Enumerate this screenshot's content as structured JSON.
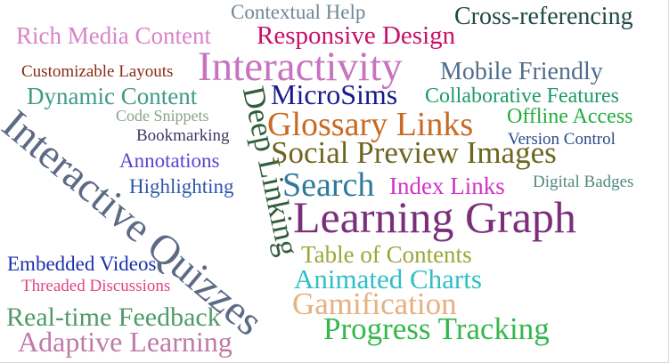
{
  "words": [
    {
      "id": "contextual-help",
      "text": "Contextual Help",
      "color": "#6f8796"
    },
    {
      "id": "cross-referencing",
      "text": "Cross-referencing",
      "color": "#1f4a45"
    },
    {
      "id": "rich-media-content",
      "text": "Rich Media Content",
      "color": "#d783c8"
    },
    {
      "id": "responsive-design",
      "text": "Responsive Design",
      "color": "#c8106a"
    },
    {
      "id": "customizable-layouts",
      "text": "Customizable Layouts",
      "color": "#8a2a14"
    },
    {
      "id": "interactivity",
      "text": "Interactivity",
      "color": "#c774c0"
    },
    {
      "id": "mobile-friendly",
      "text": "Mobile Friendly",
      "color": "#4f6d8c"
    },
    {
      "id": "dynamic-content",
      "text": "Dynamic Content",
      "color": "#3f9a86"
    },
    {
      "id": "microsims",
      "text": "MicroSims",
      "color": "#1a1a8c"
    },
    {
      "id": "collaborative-features",
      "text": "Collaborative Features",
      "color": "#1f9a66"
    },
    {
      "id": "code-snippets",
      "text": "Code Snippets",
      "color": "#8aa38a"
    },
    {
      "id": "glossary-links",
      "text": "Glossary Links",
      "color": "#c86a22"
    },
    {
      "id": "offline-access",
      "text": "Offline Access",
      "color": "#22ad3f"
    },
    {
      "id": "interactive-quizzes",
      "text": "Interactive Quizzes",
      "color": "#5d6a86"
    },
    {
      "id": "deep-linking",
      "text": "Deep Linking",
      "color": "#2f5d3a"
    },
    {
      "id": "bookmarking",
      "text": "Bookmarking",
      "color": "#3f3a66"
    },
    {
      "id": "version-control",
      "text": "Version Control",
      "color": "#2a4a8a"
    },
    {
      "id": "social-preview-images",
      "text": "Social Preview Images",
      "color": "#6e6620"
    },
    {
      "id": "annotations",
      "text": "Annotations",
      "color": "#5a44d0"
    },
    {
      "id": "search",
      "text": "Search",
      "color": "#2f7a9a"
    },
    {
      "id": "index-links",
      "text": "Index Links",
      "color": "#d233c6"
    },
    {
      "id": "digital-badges",
      "text": "Digital Badges",
      "color": "#4f8a7e"
    },
    {
      "id": "highlighting",
      "text": "Highlighting",
      "color": "#2f55a8"
    },
    {
      "id": "learning-graph",
      "text": "Learning Graph",
      "color": "#7a2f7a"
    },
    {
      "id": "table-of-contents",
      "text": "Table of Contents",
      "color": "#9aa63a"
    },
    {
      "id": "embedded-videos",
      "text": "Embedded Videos",
      "color": "#1a2fae"
    },
    {
      "id": "animated-charts",
      "text": "Animated Charts",
      "color": "#2ec0c6"
    },
    {
      "id": "threaded-discussions",
      "text": "Threaded Discussions",
      "color": "#e04485"
    },
    {
      "id": "gamification",
      "text": "Gamification",
      "color": "#e6b080"
    },
    {
      "id": "real-time-feedback",
      "text": "Real-time Feedback",
      "color": "#4f9a66"
    },
    {
      "id": "progress-tracking",
      "text": "Progress Tracking",
      "color": "#33b84a"
    },
    {
      "id": "adaptive-learning",
      "text": "Adaptive Learning",
      "color": "#c07aa8"
    }
  ]
}
